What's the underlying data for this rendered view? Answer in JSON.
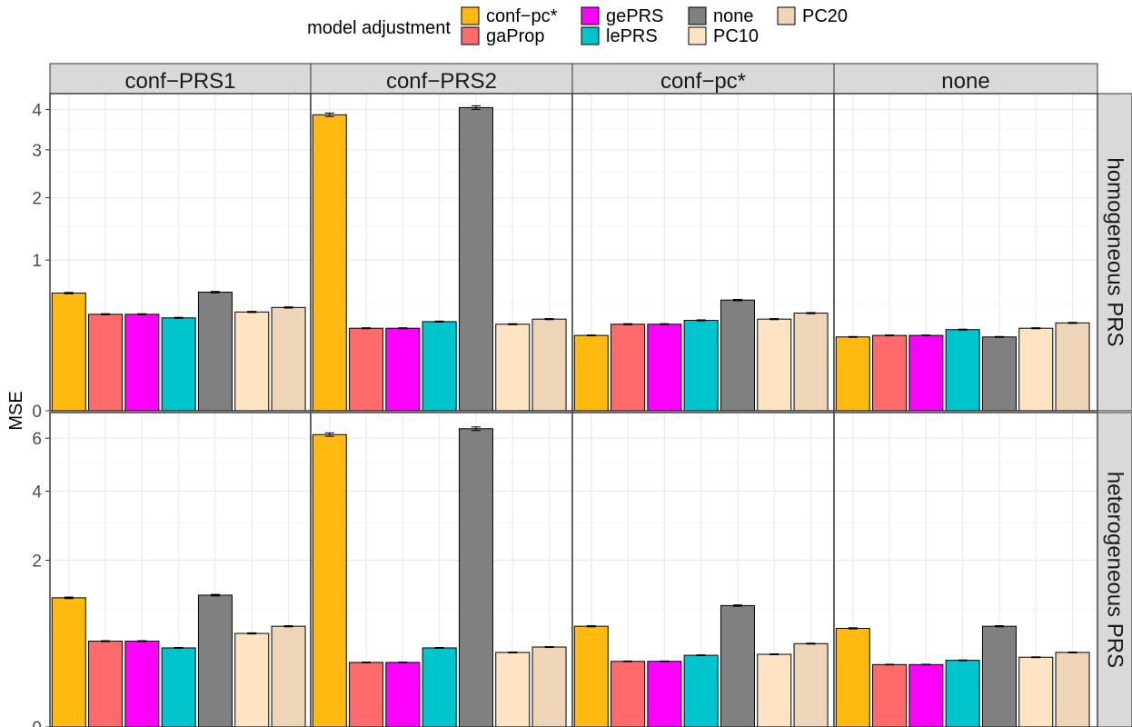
{
  "chart_data": {
    "type": "bar",
    "ylabel": "MSE",
    "legend": {
      "title": "model adjustment",
      "position": "top",
      "items": [
        {
          "name": "conf−pc*",
          "color": "#FFB90F"
        },
        {
          "name": "gaProp",
          "color": "#FF6A6A"
        },
        {
          "name": "gePRS",
          "color": "#FF00FF"
        },
        {
          "name": "lePRS",
          "color": "#00C5CD"
        },
        {
          "name": "none",
          "color": "#808080"
        },
        {
          "name": "PC10",
          "color": "#FFE4C4"
        },
        {
          "name": "PC20",
          "color": "#EED5B7"
        }
      ]
    },
    "categories": [
      "conf−pc*",
      "gaProp",
      "gePRS",
      "lePRS",
      "none",
      "PC10",
      "PC20"
    ],
    "facet_columns": [
      "conf−PRS1",
      "conf−PRS2",
      "conf−pc*",
      "none"
    ],
    "facet_rows": [
      {
        "label": "homogeneous PRS",
        "y_scale": "sqrt",
        "ylim": [
          0,
          4.3
        ],
        "yticks": [
          0,
          1,
          2,
          3,
          4
        ],
        "panels": [
          {
            "facet": "conf−PRS1",
            "values": [
              0.61,
              0.41,
              0.41,
              0.38,
              0.62,
              0.43,
              0.47
            ]
          },
          {
            "facet": "conf−PRS2",
            "values": [
              3.86,
              0.3,
              0.3,
              0.35,
              4.05,
              0.33,
              0.37
            ]
          },
          {
            "facet": "conf−pc*",
            "values": [
              0.25,
              0.33,
              0.33,
              0.36,
              0.54,
              0.37,
              0.42
            ]
          },
          {
            "facet": "none",
            "values": [
              0.24,
              0.25,
              0.25,
              0.29,
              0.24,
              0.3,
              0.34
            ]
          }
        ]
      },
      {
        "label": "heterogeneous PRS",
        "y_scale": "sqrt",
        "ylim": [
          0,
          6.9
        ],
        "yticks": [
          0,
          2,
          4,
          6
        ],
        "panels": [
          {
            "facet": "conf−PRS1",
            "values": [
              1.2,
              0.53,
              0.53,
              0.45,
              1.25,
              0.63,
              0.73
            ]
          },
          {
            "facet": "conf−PRS2",
            "values": [
              6.15,
              0.3,
              0.3,
              0.45,
              6.4,
              0.4,
              0.46
            ]
          },
          {
            "facet": "conf−pc*",
            "values": [
              0.73,
              0.31,
              0.31,
              0.37,
              1.06,
              0.38,
              0.5
            ]
          },
          {
            "facet": "none",
            "values": [
              0.7,
              0.28,
              0.28,
              0.32,
              0.73,
              0.35,
              0.4
            ]
          }
        ]
      }
    ],
    "grid": true
  }
}
